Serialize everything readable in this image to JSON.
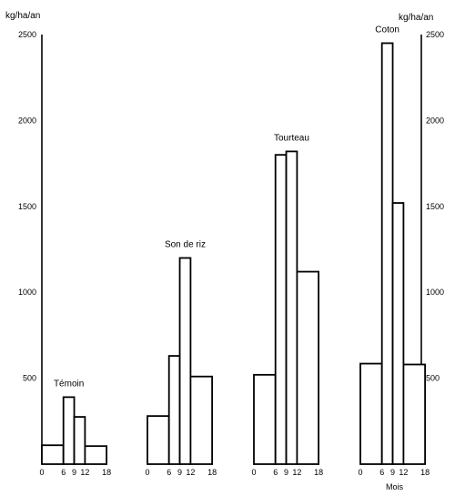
{
  "chart_data": {
    "type": "bar",
    "ylabel_left": "kg/ha/an",
    "ylabel_right": "kg/ha/an",
    "xlabel": "Mois",
    "ylim": [
      0,
      2500
    ],
    "yticks": [
      500,
      1000,
      1500,
      2000,
      2500
    ],
    "xticks": [
      "0",
      "6",
      "9",
      "12",
      "18"
    ],
    "grid": false,
    "groups": [
      {
        "name": "Témoin",
        "values": [
          110,
          390,
          275,
          105
        ]
      },
      {
        "name": "Son de riz",
        "values": [
          280,
          630,
          1200,
          510
        ]
      },
      {
        "name": "Tourteau",
        "values": [
          520,
          1800,
          1820,
          1120
        ]
      },
      {
        "name": "Coton",
        "values": [
          585,
          2450,
          1520,
          580
        ]
      }
    ]
  }
}
